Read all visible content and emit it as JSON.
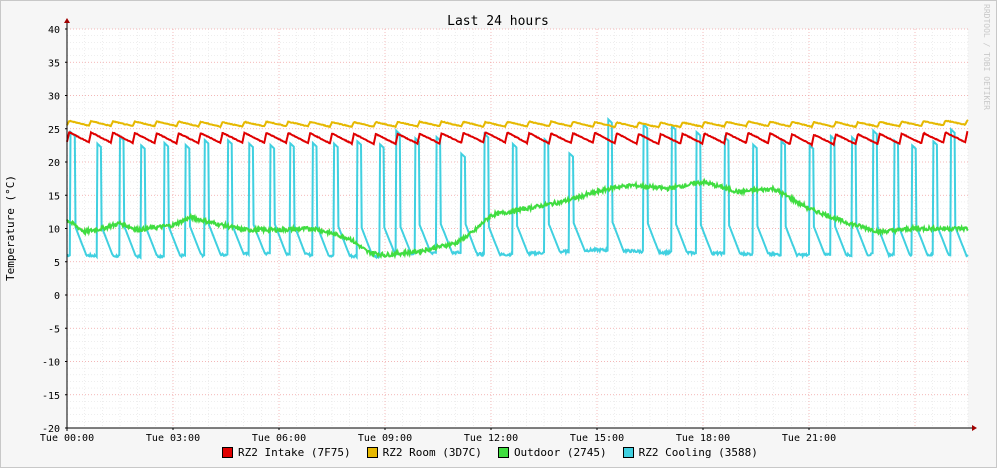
{
  "watermark": "RRDTOOL / TOBI OETIKER",
  "chart_data": {
    "type": "line",
    "title": "Last 24 hours",
    "ylabel": "Temperature (°C)",
    "xlabel": "",
    "ylim": [
      -20,
      40
    ],
    "xlim_hours": [
      0,
      25.5
    ],
    "y_ticks": [
      "40",
      "35",
      "30",
      "25",
      "20",
      "15",
      "10",
      "5",
      "0",
      "-5",
      "-10",
      "-15",
      "-20"
    ],
    "x_ticks": [
      "Tue 00:00",
      "Tue 03:00",
      "Tue 06:00",
      "Tue 09:00",
      "Tue 12:00",
      "Tue 15:00",
      "Tue 18:00",
      "Tue 21:00"
    ],
    "grid": true,
    "legend_position": "bottom",
    "series": [
      {
        "name": "RZ2 Intake (7F75)",
        "color": "#e00000",
        "x": [
          0,
          1.5,
          3,
          4.5,
          6,
          7.5,
          9,
          10.5,
          12,
          13.5,
          15,
          16.5,
          18,
          19.5,
          21,
          22.5,
          24,
          25.3
        ],
        "values": [
          23.5,
          23.4,
          23.3,
          23.4,
          23.4,
          23.3,
          23.2,
          23.3,
          23.5,
          23.3,
          23.4,
          23.2,
          23.3,
          23.4,
          23.1,
          23.2,
          23.3,
          23.5
        ]
      },
      {
        "name": "RZ2 Room (3D7C)",
        "color": "#e6b800",
        "x": [
          0,
          1.5,
          3,
          4.5,
          6,
          7.5,
          9,
          10.5,
          12,
          13.5,
          15,
          16.5,
          18,
          19.5,
          21,
          22.5,
          24,
          25.3
        ],
        "values": [
          25.8,
          25.7,
          25.7,
          25.6,
          25.7,
          25.6,
          25.6,
          25.7,
          25.6,
          25.7,
          25.6,
          25.5,
          25.6,
          25.7,
          25.6,
          25.6,
          25.7,
          25.9
        ]
      },
      {
        "name": "Outdoor (2745)",
        "color": "#40dd40",
        "x": [
          0,
          0.5,
          1,
          1.5,
          2,
          3,
          3.5,
          4,
          5,
          6,
          7,
          8,
          8.5,
          9,
          10,
          11,
          11.5,
          12,
          13,
          14,
          15,
          15.5,
          16,
          17,
          18,
          19,
          20,
          21,
          22,
          23,
          24,
          25.3
        ],
        "values": [
          11.3,
          9.5,
          10.0,
          10.8,
          9.8,
          10.5,
          11.7,
          11.0,
          9.8,
          9.8,
          10.0,
          8.5,
          6.5,
          6.0,
          6.6,
          7.8,
          9.5,
          12.0,
          13.0,
          14.0,
          15.5,
          16.2,
          16.5,
          16.0,
          17.0,
          15.5,
          16.0,
          13.0,
          11.0,
          9.5,
          10.0,
          10.0
        ]
      },
      {
        "name": "RZ2 Cooling (3588)",
        "color": "#40d0e0",
        "pulse_times": [
          0.1,
          0.85,
          1.5,
          2.1,
          2.75,
          3.35,
          3.9,
          4.55,
          5.15,
          5.75,
          6.3,
          6.95,
          7.55,
          8.2,
          8.85,
          9.3,
          9.85,
          10.45,
          11.15,
          11.8,
          12.6,
          13.5,
          14.2,
          15.3,
          16.3,
          17.1,
          17.8,
          18.6,
          19.4,
          20.2,
          21.0,
          21.6,
          22.2,
          22.8,
          23.4,
          23.9,
          24.5,
          25.0
        ],
        "pulse_peaks": [
          24.5,
          22.8,
          23.8,
          22.5,
          22.9,
          22.6,
          23.3,
          23.3,
          22.8,
          22.6,
          22.9,
          22.9,
          22.8,
          23.2,
          22.7,
          24.8,
          23.6,
          23.8,
          21.3,
          24.3,
          22.8,
          23.5,
          21.4,
          26.5,
          25.7,
          25.5,
          24.6,
          23.8,
          22.7,
          23.2,
          22.6,
          24.0,
          23.8,
          24.8,
          23.3,
          22.6,
          23.2,
          25.0
        ],
        "baseline_x": [
          0,
          2,
          4,
          6,
          7,
          8,
          9,
          10,
          11,
          12,
          13,
          15,
          17,
          19,
          21,
          23,
          25.3
        ],
        "baseline_values": [
          6.0,
          5.8,
          6.0,
          6.3,
          6.0,
          5.9,
          5.8,
          6.2,
          6.4,
          6.0,
          6.2,
          6.8,
          6.4,
          6.2,
          6.0,
          6.1,
          6.0
        ]
      }
    ]
  }
}
